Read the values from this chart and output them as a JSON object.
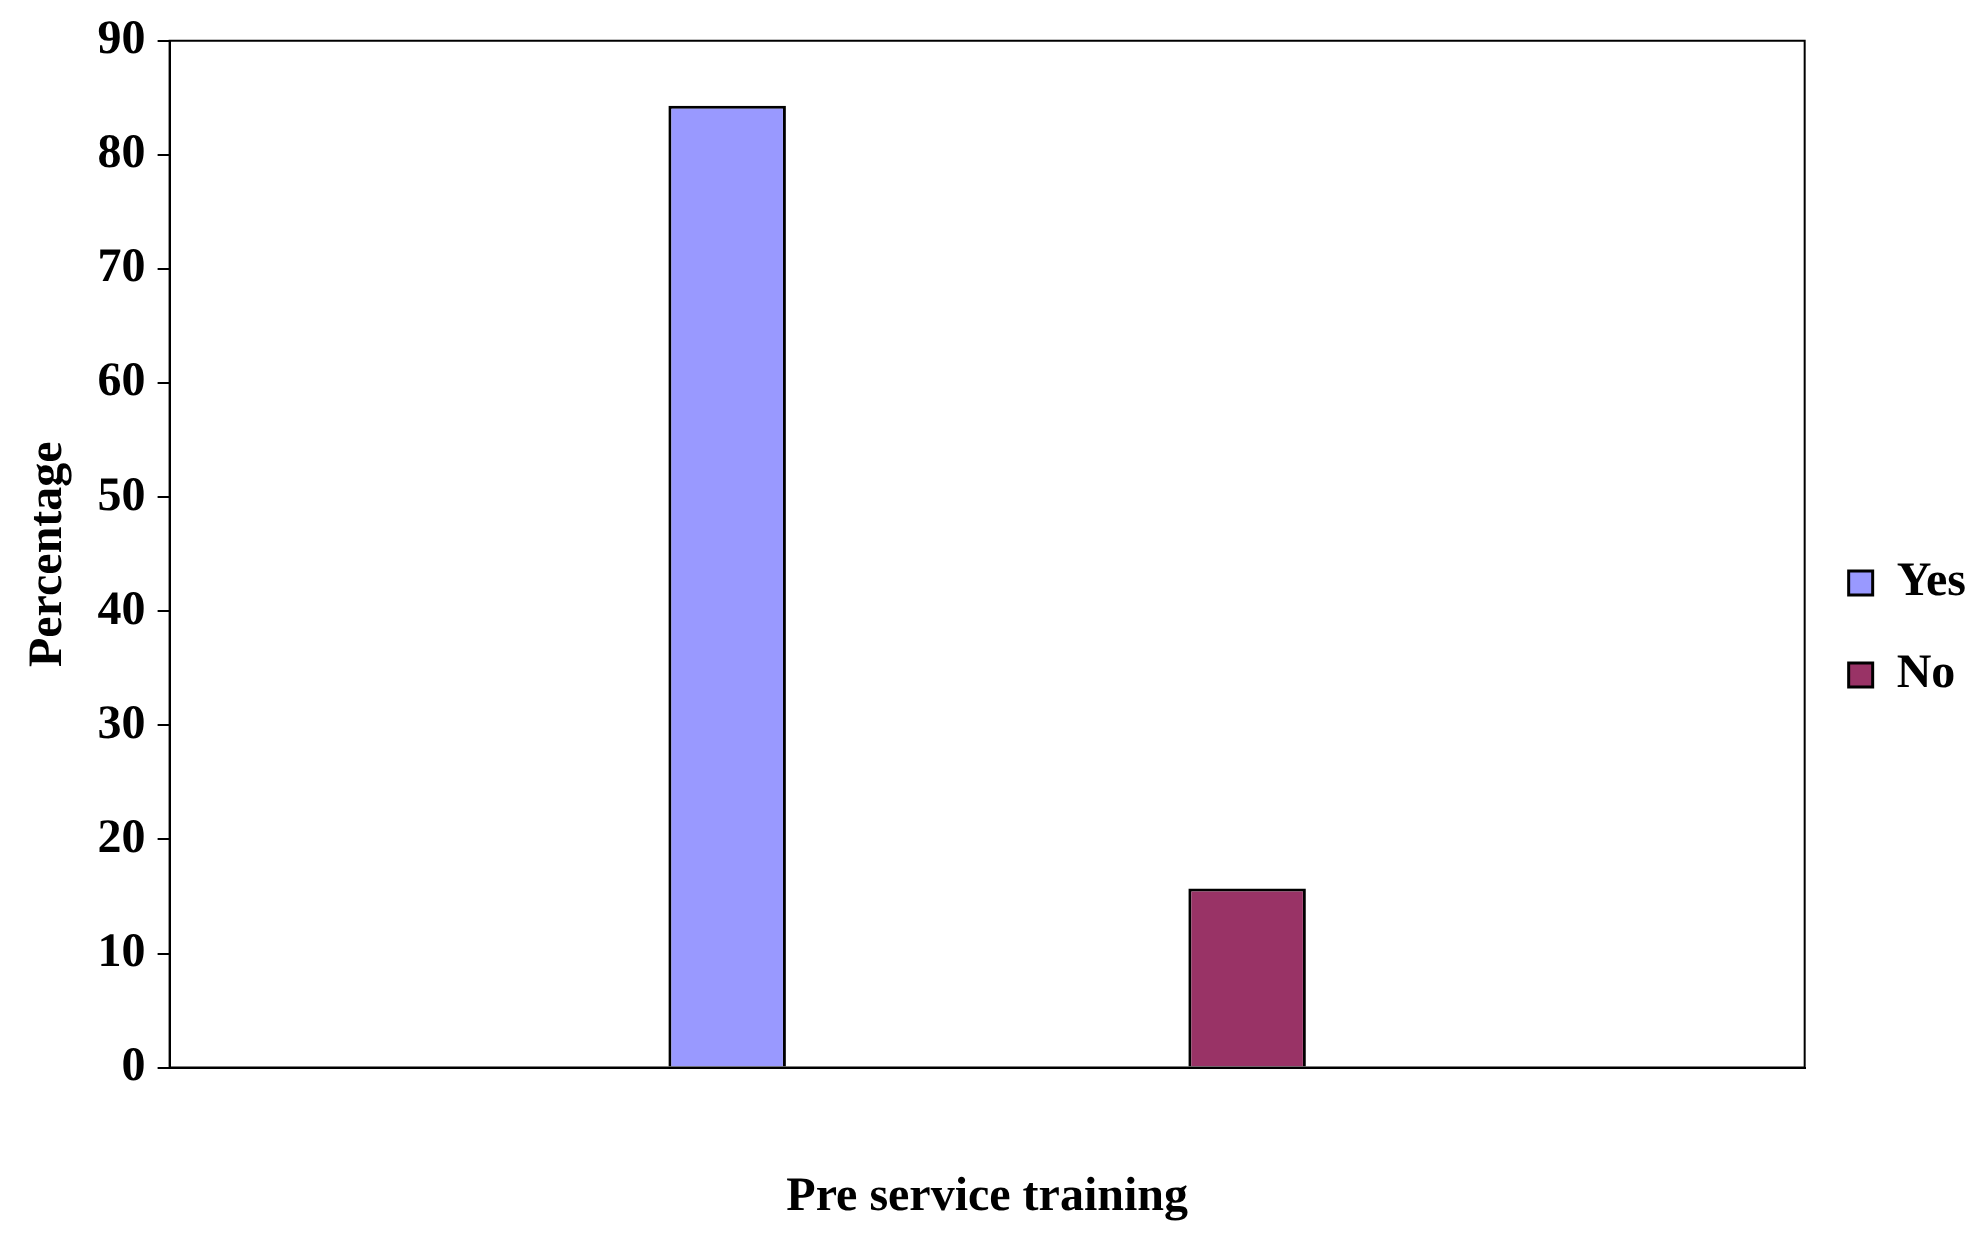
{
  "chart_data": {
    "type": "bar",
    "xlabel": "Pre service training",
    "ylabel": "Percentage",
    "categories": [
      null
    ],
    "series": [
      {
        "name": "Yes",
        "color": "#9999ff",
        "values": [
          84.3
        ]
      },
      {
        "name": "No",
        "color": "#993366",
        "values": [
          15.7
        ]
      }
    ],
    "ylim": [
      0,
      90
    ],
    "yticks": [
      0,
      10,
      20,
      30,
      40,
      50,
      60,
      70,
      80,
      90
    ],
    "grid": false,
    "legend": "right"
  }
}
